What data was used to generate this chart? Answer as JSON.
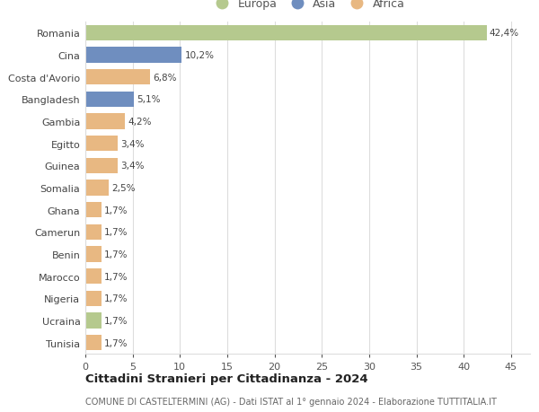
{
  "countries": [
    "Romania",
    "Cina",
    "Costa d'Avorio",
    "Bangladesh",
    "Gambia",
    "Egitto",
    "Guinea",
    "Somalia",
    "Ghana",
    "Camerun",
    "Benin",
    "Marocco",
    "Nigeria",
    "Ucraina",
    "Tunisia"
  ],
  "values": [
    42.4,
    10.2,
    6.8,
    5.1,
    4.2,
    3.4,
    3.4,
    2.5,
    1.7,
    1.7,
    1.7,
    1.7,
    1.7,
    1.7,
    1.7
  ],
  "labels": [
    "42,4%",
    "10,2%",
    "6,8%",
    "5,1%",
    "4,2%",
    "3,4%",
    "3,4%",
    "2,5%",
    "1,7%",
    "1,7%",
    "1,7%",
    "1,7%",
    "1,7%",
    "1,7%",
    "1,7%"
  ],
  "continents": [
    "Europa",
    "Asia",
    "Africa",
    "Asia",
    "Africa",
    "Africa",
    "Africa",
    "Africa",
    "Africa",
    "Africa",
    "Africa",
    "Africa",
    "Africa",
    "Europa",
    "Africa"
  ],
  "colors": {
    "Europa": "#b5c98e",
    "Asia": "#6f8ebf",
    "Africa": "#e8b882"
  },
  "title": "Cittadini Stranieri per Cittadinanza - 2024",
  "subtitle": "COMUNE DI CASTELTERMINI (AG) - Dati ISTAT al 1° gennaio 2024 - Elaborazione TUTTITALIA.IT",
  "xlim": [
    0,
    47
  ],
  "xticks": [
    0,
    5,
    10,
    15,
    20,
    25,
    30,
    35,
    40,
    45
  ],
  "background_color": "#ffffff",
  "grid_color": "#dddddd"
}
